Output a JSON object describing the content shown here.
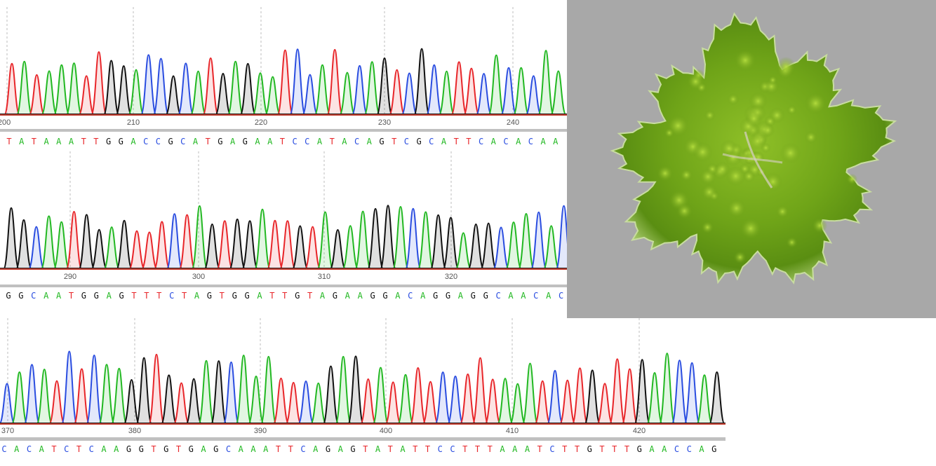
{
  "colors": {
    "A": "#22b822",
    "C": "#2a4de0",
    "G": "#111111",
    "T": "#e8262a",
    "baseline": "#c0392b",
    "band": "#c0c0c0",
    "bg": "#a8a8a8"
  },
  "panels": [
    {
      "id": "panel1",
      "sequence": "TATAAATTGGACCGCATGAGAATCCATACAGTCGCATTCACACAA",
      "ticks": [
        {
          "label": "200"
        },
        {
          "label": "210"
        },
        {
          "label": "220"
        },
        {
          "label": "230"
        },
        {
          "label": "240"
        }
      ]
    },
    {
      "id": "panel2",
      "sequence": "GGCAATGGAGTTTCTAGTGGATTGTAGAAGGACAGGAGGCAACAC",
      "ticks": [
        {
          "label": "290"
        },
        {
          "label": "300"
        },
        {
          "label": "310"
        },
        {
          "label": "320"
        }
      ]
    },
    {
      "id": "panel3",
      "sequence": "CACATCTCAAGGTGTGAGCAAATTCAGAGTATATTCCTTTAAATCTTGTTTGAACCAG",
      "ticks": [
        {
          "label": "370"
        },
        {
          "label": "380"
        },
        {
          "label": "390"
        },
        {
          "label": "400"
        },
        {
          "label": "410"
        },
        {
          "label": "420"
        }
      ]
    }
  ],
  "image": {
    "subject": "green desmid microalga micrograph"
  }
}
